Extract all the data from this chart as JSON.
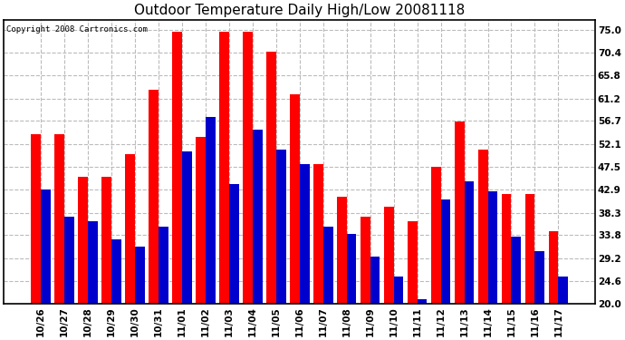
{
  "title": "Outdoor Temperature Daily High/Low 20081118",
  "copyright_text": "Copyright 2008 Cartronics.com",
  "categories": [
    "10/26",
    "10/27",
    "10/28",
    "10/29",
    "10/30",
    "10/31",
    "11/01",
    "11/02",
    "11/03",
    "11/04",
    "11/05",
    "11/06",
    "11/07",
    "11/08",
    "11/09",
    "11/10",
    "11/11",
    "11/12",
    "11/13",
    "11/14",
    "11/15",
    "11/16",
    "11/17"
  ],
  "high_values": [
    54.0,
    54.0,
    45.5,
    45.5,
    50.0,
    63.0,
    74.5,
    53.5,
    74.5,
    74.5,
    70.5,
    62.0,
    48.0,
    41.5,
    37.5,
    39.5,
    36.5,
    47.5,
    56.5,
    51.0,
    42.0,
    42.0,
    34.5
  ],
  "low_values": [
    43.0,
    37.5,
    36.5,
    33.0,
    31.5,
    35.5,
    50.5,
    57.5,
    44.0,
    55.0,
    51.0,
    48.0,
    35.5,
    34.0,
    29.5,
    25.5,
    21.0,
    41.0,
    44.5,
    42.5,
    33.5,
    30.5,
    25.5
  ],
  "high_color": "#ff0000",
  "low_color": "#0000cc",
  "background_color": "#ffffff",
  "plot_bg_color": "#ffffff",
  "grid_color": "#bbbbbb",
  "ylim_min": 20.0,
  "ylim_max": 77.0,
  "yticks": [
    20.0,
    24.6,
    29.2,
    33.8,
    38.3,
    42.9,
    47.5,
    52.1,
    56.7,
    61.2,
    65.8,
    70.4,
    75.0
  ],
  "title_fontsize": 11,
  "copyright_fontsize": 6.5,
  "tick_fontsize": 7.5,
  "bar_width": 0.42
}
